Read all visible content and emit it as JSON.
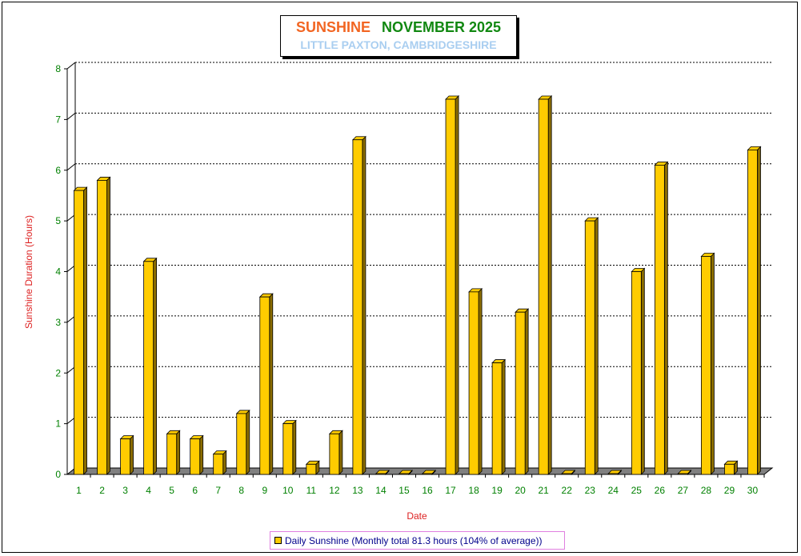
{
  "title": {
    "main_left": "SUNSHINE",
    "main_right": "NOVEMBER 2025",
    "subtitle": "LITTLE PAXTON, CAMBRIDGESHIRE"
  },
  "colors": {
    "bar": "#ffcc00",
    "bar_side": "#8a6c00",
    "floor": "#808080",
    "axis_text": "#008000",
    "label_text": "#dd2222",
    "title_left": "#f26522",
    "title_right": "#118811",
    "subtitle": "#a9cef0",
    "legend_text": "#00008b"
  },
  "chart_data": {
    "type": "bar",
    "categories": [
      "1",
      "2",
      "3",
      "4",
      "5",
      "6",
      "7",
      "8",
      "9",
      "10",
      "11",
      "12",
      "13",
      "14",
      "15",
      "16",
      "17",
      "18",
      "19",
      "20",
      "21",
      "22",
      "23",
      "24",
      "25",
      "26",
      "27",
      "28",
      "29",
      "30"
    ],
    "series": [
      {
        "name": "Daily Sunshine (Monthly total 81.3 hours (104% of average))",
        "values": [
          5.6,
          5.8,
          0.7,
          4.2,
          0.8,
          0.7,
          0.4,
          1.2,
          3.5,
          1.0,
          0.2,
          0.8,
          6.6,
          0.0,
          0.0,
          0.0,
          7.4,
          3.6,
          2.2,
          3.2,
          7.4,
          0.0,
          5.0,
          0.0,
          4.0,
          6.1,
          0.0,
          4.3,
          0.2,
          6.4
        ]
      }
    ],
    "xlabel": "Date",
    "ylabel": "Sunshine Duration (Hours)",
    "ylim": [
      0,
      8
    ],
    "yticks": [
      "0",
      "1",
      "2",
      "3",
      "4",
      "5",
      "6",
      "7",
      "8"
    ],
    "grid": true,
    "legend_position": "bottom"
  }
}
